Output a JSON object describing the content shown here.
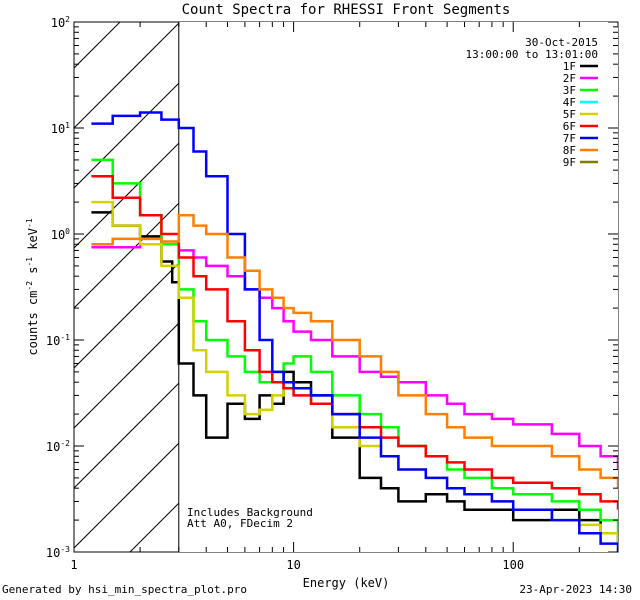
{
  "chart_data": {
    "type": "line",
    "title": "Count Spectra for RHESSI Front Segments",
    "xlabel": "Energy (keV)",
    "ylabel": "counts cm",
    "ylabel_exp1": "-2",
    "ylabel_mid": " s",
    "ylabel_exp2": "-1",
    "ylabel_end": " keV",
    "ylabel_exp3": "-1",
    "x_scale": "log",
    "y_scale": "log",
    "xlim": [
      1,
      300
    ],
    "ylim": [
      0.001,
      100
    ],
    "x_tick_labels": [
      {
        "value": 1,
        "label": "1"
      },
      {
        "value": 10,
        "label": "10"
      },
      {
        "value": 100,
        "label": "100"
      }
    ],
    "y_tick_labels": [
      {
        "value": 0.001,
        "base": "10",
        "exp": "-3"
      },
      {
        "value": 0.01,
        "base": "10",
        "exp": "-2"
      },
      {
        "value": 0.1,
        "base": "10",
        "exp": "-1"
      },
      {
        "value": 1,
        "base": "10",
        "exp": "0"
      },
      {
        "value": 10,
        "base": "10",
        "exp": "1"
      },
      {
        "value": 100,
        "base": "10",
        "exp": "2"
      }
    ],
    "date": "30-Oct-2015",
    "time_range": "13:00:00 to 13:01:00",
    "hatched_region_xmax": 3,
    "annotations": [
      "Includes Background",
      "Att A0, FDecim 2"
    ],
    "series": [
      {
        "name": "1F",
        "color": "#000000",
        "x": [
          1.2,
          1.5,
          2,
          2.5,
          2.8,
          3,
          3.5,
          4,
          5,
          6,
          7,
          8,
          9,
          10,
          12,
          15,
          20,
          25,
          30,
          40,
          50,
          60,
          80,
          100,
          150,
          200,
          250,
          300
        ],
        "y": [
          1.6,
          1.2,
          0.95,
          0.55,
          0.35,
          0.06,
          0.03,
          0.012,
          0.025,
          0.018,
          0.03,
          0.025,
          0.05,
          0.04,
          0.03,
          0.012,
          0.005,
          0.004,
          0.003,
          0.0035,
          0.003,
          0.0025,
          0.0025,
          0.002,
          0.0025,
          0.002,
          0.0015,
          0.0012
        ]
      },
      {
        "name": "2F",
        "color": "#ff00ff",
        "x": [
          1.2,
          1.5,
          2,
          2.5,
          3,
          3.5,
          4,
          5,
          6,
          7,
          8,
          9,
          10,
          12,
          15,
          20,
          25,
          30,
          40,
          50,
          60,
          80,
          100,
          150,
          200,
          250,
          300
        ],
        "y": [
          0.75,
          0.75,
          0.8,
          0.8,
          0.7,
          0.6,
          0.5,
          0.4,
          0.3,
          0.25,
          0.2,
          0.15,
          0.12,
          0.1,
          0.07,
          0.05,
          0.045,
          0.04,
          0.03,
          0.025,
          0.02,
          0.018,
          0.016,
          0.013,
          0.01,
          0.008,
          0.006
        ]
      },
      {
        "name": "3F",
        "color": "#00ff00",
        "x": [
          1.2,
          1.5,
          2,
          2.5,
          3,
          3.5,
          4,
          5,
          6,
          7,
          8,
          9,
          10,
          12,
          15,
          20,
          25,
          30,
          40,
          50,
          60,
          80,
          100,
          150,
          200,
          250,
          300
        ],
        "y": [
          5,
          3,
          1.5,
          0.8,
          0.3,
          0.15,
          0.1,
          0.07,
          0.05,
          0.04,
          0.05,
          0.06,
          0.07,
          0.05,
          0.03,
          0.02,
          0.015,
          0.01,
          0.008,
          0.006,
          0.005,
          0.004,
          0.0035,
          0.003,
          0.0025,
          0.002,
          0.0015
        ]
      },
      {
        "name": "4F",
        "color": "#00ffff",
        "x": [],
        "y": []
      },
      {
        "name": "5F",
        "color": "#d2d200",
        "x": [
          1.2,
          1.5,
          2,
          2.5,
          3,
          3.5,
          4,
          5,
          6,
          7,
          8,
          9,
          10,
          12,
          15,
          20,
          25,
          30,
          40,
          50,
          60,
          80,
          100,
          150,
          200,
          250,
          300
        ],
        "y": [
          2,
          1.2,
          0.8,
          0.5,
          0.25,
          0.08,
          0.05,
          0.03,
          0.02,
          0.022,
          0.03,
          0.04,
          0.035,
          0.025,
          0.015,
          0.01,
          0.008,
          0.006,
          0.005,
          0.004,
          0.0035,
          0.003,
          0.0025,
          0.002,
          0.0018,
          0.0015,
          0.0012
        ]
      },
      {
        "name": "6F",
        "color": "#ff0000",
        "x": [
          1.2,
          1.5,
          2,
          2.5,
          3,
          3.5,
          4,
          5,
          6,
          7,
          8,
          9,
          10,
          12,
          15,
          20,
          25,
          30,
          40,
          50,
          60,
          80,
          100,
          150,
          200,
          250,
          300
        ],
        "y": [
          3.5,
          2.2,
          1.5,
          1,
          0.6,
          0.4,
          0.3,
          0.15,
          0.08,
          0.05,
          0.04,
          0.035,
          0.03,
          0.025,
          0.02,
          0.015,
          0.012,
          0.01,
          0.008,
          0.007,
          0.006,
          0.005,
          0.0045,
          0.004,
          0.0035,
          0.003,
          0.0025
        ]
      },
      {
        "name": "7F",
        "color": "#0000ff",
        "x": [
          1.2,
          1.5,
          2,
          2.5,
          3,
          3.5,
          4,
          5,
          6,
          7,
          8,
          9,
          10,
          12,
          15,
          20,
          25,
          30,
          40,
          50,
          60,
          80,
          100,
          150,
          200,
          250,
          300
        ],
        "y": [
          11,
          13,
          14,
          12,
          10,
          6,
          3.5,
          1,
          0.3,
          0.1,
          0.05,
          0.04,
          0.035,
          0.03,
          0.02,
          0.012,
          0.008,
          0.006,
          0.005,
          0.004,
          0.0035,
          0.003,
          0.0025,
          0.002,
          0.0015,
          0.0012,
          0.001
        ]
      },
      {
        "name": "8F",
        "color": "#ff7f00",
        "x": [
          1.2,
          1.5,
          2,
          2.5,
          3,
          3.5,
          4,
          5,
          6,
          7,
          8,
          9,
          10,
          12,
          15,
          20,
          25,
          30,
          40,
          50,
          60,
          80,
          100,
          150,
          200,
          250,
          300
        ],
        "y": [
          0.8,
          0.9,
          0.9,
          0.85,
          1.5,
          1.2,
          1,
          0.6,
          0.45,
          0.3,
          0.25,
          0.2,
          0.18,
          0.15,
          0.1,
          0.07,
          0.05,
          0.03,
          0.02,
          0.015,
          0.012,
          0.01,
          0.01,
          0.008,
          0.006,
          0.005,
          0.004
        ]
      },
      {
        "name": "9F",
        "color": "#7f7f00",
        "x": [],
        "y": []
      }
    ]
  },
  "footer": {
    "generated_by": "Generated by hsi_min_spectra_plot.pro",
    "timestamp": "23-Apr-2023 14:30"
  }
}
